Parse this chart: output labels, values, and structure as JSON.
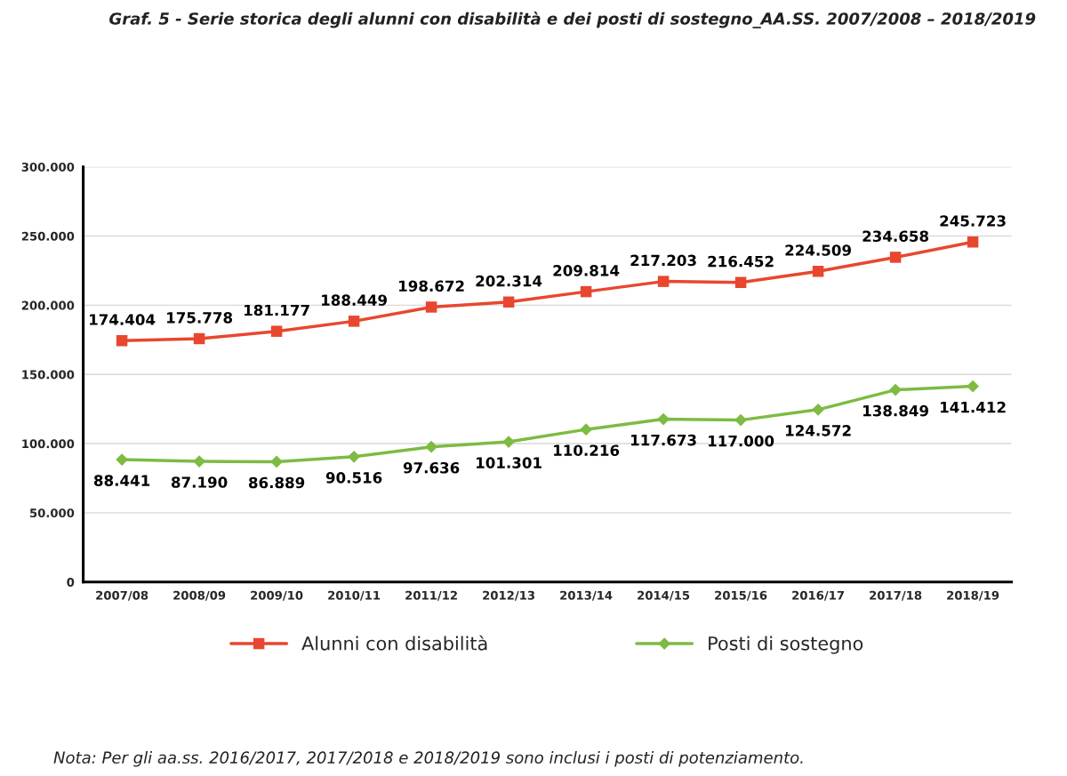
{
  "chart_data": {
    "type": "line",
    "title": "Graf. 5 - Serie storica degli alunni con disabilità e dei posti di sostegno_AA.SS. 2007/2008 – 2018/2019",
    "categories": [
      "2007/08",
      "2008/09",
      "2009/10",
      "2010/11",
      "2011/12",
      "2012/13",
      "2013/14",
      "2014/15",
      "2015/16",
      "2016/17",
      "2017/18",
      "2018/19"
    ],
    "series": [
      {
        "name": "Alunni con disabilità",
        "color": "#e8472f",
        "marker": "square",
        "values": [
          174404,
          175778,
          181177,
          188449,
          198672,
          202314,
          209814,
          217203,
          216452,
          224509,
          234658,
          245723
        ],
        "value_labels": [
          "174.404",
          "175.778",
          "181.177",
          "188.449",
          "198.672",
          "202.314",
          "209.814",
          "217.203",
          "216.452",
          "224.509",
          "234.658",
          "245.723"
        ]
      },
      {
        "name": "Posti di sostegno",
        "color": "#7dbb42",
        "marker": "diamond",
        "values": [
          88441,
          87190,
          86889,
          90516,
          97636,
          101301,
          110216,
          117673,
          117000,
          124572,
          138849,
          141412
        ],
        "value_labels": [
          "88.441",
          "87.190",
          "86.889",
          "90.516",
          "97.636",
          "101.301",
          "110.216",
          "117.673",
          "117.000",
          "124.572",
          "138.849",
          "141.412"
        ]
      }
    ],
    "ylim": [
      0,
      300000
    ],
    "yticks": [
      0,
      {
        "value": 50000,
        "label": "50.000"
      },
      {
        "value": 100000,
        "label": "100.000"
      },
      {
        "value": 150000,
        "label": "150.000"
      },
      {
        "value": 200000,
        "label": "200.000"
      },
      {
        "value": 250000,
        "label": "250.000"
      },
      {
        "value": 300000,
        "label": "300.000"
      }
    ],
    "grid": "y",
    "legend": "bottom",
    "line_style": "solid",
    "annotations": [
      "Nota: Per gli aa.ss. 2016/2017, 2017/2018 e 2018/2019 sono inclusi i posti di potenziamento."
    ]
  }
}
